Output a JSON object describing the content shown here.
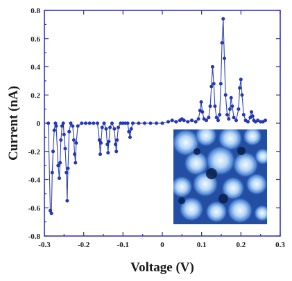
{
  "chart_data": {
    "type": "line",
    "xlabel": "Voltage (V)",
    "ylabel": "Current (nA)",
    "xlim": [
      -0.3,
      0.3
    ],
    "ylim": [
      -0.8,
      0.8
    ],
    "x_ticks": [
      -0.3,
      -0.2,
      -0.1,
      0,
      0.1,
      0.2,
      0.3
    ],
    "x_tick_labels": [
      "-0.3",
      "-0.2",
      "-0.1",
      "0",
      "0.1",
      "0.2",
      "0.3"
    ],
    "y_ticks": [
      0.8,
      0.6,
      0.4,
      0.2,
      0,
      -0.2,
      -0.4,
      -0.6,
      -0.8
    ],
    "y_tick_labels": [
      "0.8",
      "0.6",
      "0.4",
      "0.2",
      "0",
      "-0.2",
      "-0.4",
      "-0.6",
      "-0.8"
    ],
    "grid": false,
    "series_color": "#2238c4",
    "series": [
      {
        "x": [
          -0.29,
          -0.285,
          -0.282,
          -0.28,
          -0.278,
          -0.275,
          -0.272,
          -0.27,
          -0.265,
          -0.262,
          -0.26,
          -0.258,
          -0.255,
          -0.252,
          -0.25,
          -0.247,
          -0.244,
          -0.242,
          -0.24,
          -0.237,
          -0.233,
          -0.228,
          -0.225,
          -0.223,
          -0.221,
          -0.219,
          -0.215,
          -0.205,
          -0.195,
          -0.185,
          -0.175,
          -0.165,
          -0.16,
          -0.158,
          -0.156,
          -0.153,
          -0.148,
          -0.143,
          -0.14,
          -0.138,
          -0.136,
          -0.133,
          -0.128,
          -0.122,
          -0.119,
          -0.117,
          -0.115,
          -0.112,
          -0.106,
          -0.1,
          -0.094,
          -0.088,
          -0.085,
          -0.082,
          -0.079,
          -0.075,
          -0.06,
          -0.045,
          -0.03,
          -0.015,
          0.0,
          0.015,
          0.025,
          0.035,
          0.045,
          0.05,
          0.055,
          0.065,
          0.075,
          0.085,
          0.092,
          0.096,
          0.099,
          0.102,
          0.106,
          0.112,
          0.118,
          0.122,
          0.125,
          0.128,
          0.131,
          0.134,
          0.138,
          0.142,
          0.146,
          0.149,
          0.152,
          0.155,
          0.158,
          0.161,
          0.165,
          0.169,
          0.172,
          0.175,
          0.178,
          0.182,
          0.188,
          0.194,
          0.197,
          0.2,
          0.203,
          0.207,
          0.212,
          0.218,
          0.224,
          0.227,
          0.23,
          0.233,
          0.237,
          0.243,
          0.25,
          0.256,
          0.262
        ],
        "y": [
          0.0,
          -0.62,
          -0.64,
          -0.35,
          -0.2,
          -0.05,
          0.0,
          -0.02,
          -0.3,
          -0.39,
          -0.28,
          -0.12,
          -0.02,
          0.0,
          -0.08,
          -0.18,
          -0.35,
          -0.55,
          -0.32,
          -0.06,
          0.0,
          -0.02,
          -0.12,
          -0.22,
          -0.28,
          -0.14,
          -0.02,
          0.0,
          0.0,
          0.0,
          0.0,
          0.0,
          -0.12,
          -0.22,
          -0.14,
          -0.03,
          0.0,
          -0.04,
          -0.15,
          -0.21,
          -0.13,
          -0.03,
          0.0,
          -0.04,
          -0.15,
          -0.2,
          -0.12,
          -0.03,
          0.0,
          0.0,
          0.0,
          0.0,
          -0.06,
          -0.1,
          -0.04,
          0.0,
          0.0,
          0.0,
          0.0,
          0.0,
          0.0,
          0.01,
          0.02,
          0.01,
          0.02,
          0.03,
          0.02,
          0.01,
          0.02,
          0.01,
          0.03,
          0.09,
          0.15,
          0.08,
          0.03,
          0.02,
          0.04,
          0.12,
          0.26,
          0.4,
          0.28,
          0.12,
          0.04,
          0.02,
          0.06,
          0.28,
          0.57,
          0.74,
          0.46,
          0.2,
          0.06,
          0.03,
          0.1,
          0.18,
          0.12,
          0.04,
          0.02,
          0.1,
          0.25,
          0.31,
          0.2,
          0.06,
          0.02,
          0.01,
          0.04,
          0.08,
          0.05,
          0.02,
          0.01,
          0.02,
          0.01,
          0.01,
          0.02
        ]
      }
    ],
    "inset": {
      "type": "image",
      "description_colors": [
        "#0b1f4a",
        "#1f4fa8",
        "#4f86d6",
        "#a8cff4",
        "#f2f8ff"
      ]
    }
  }
}
